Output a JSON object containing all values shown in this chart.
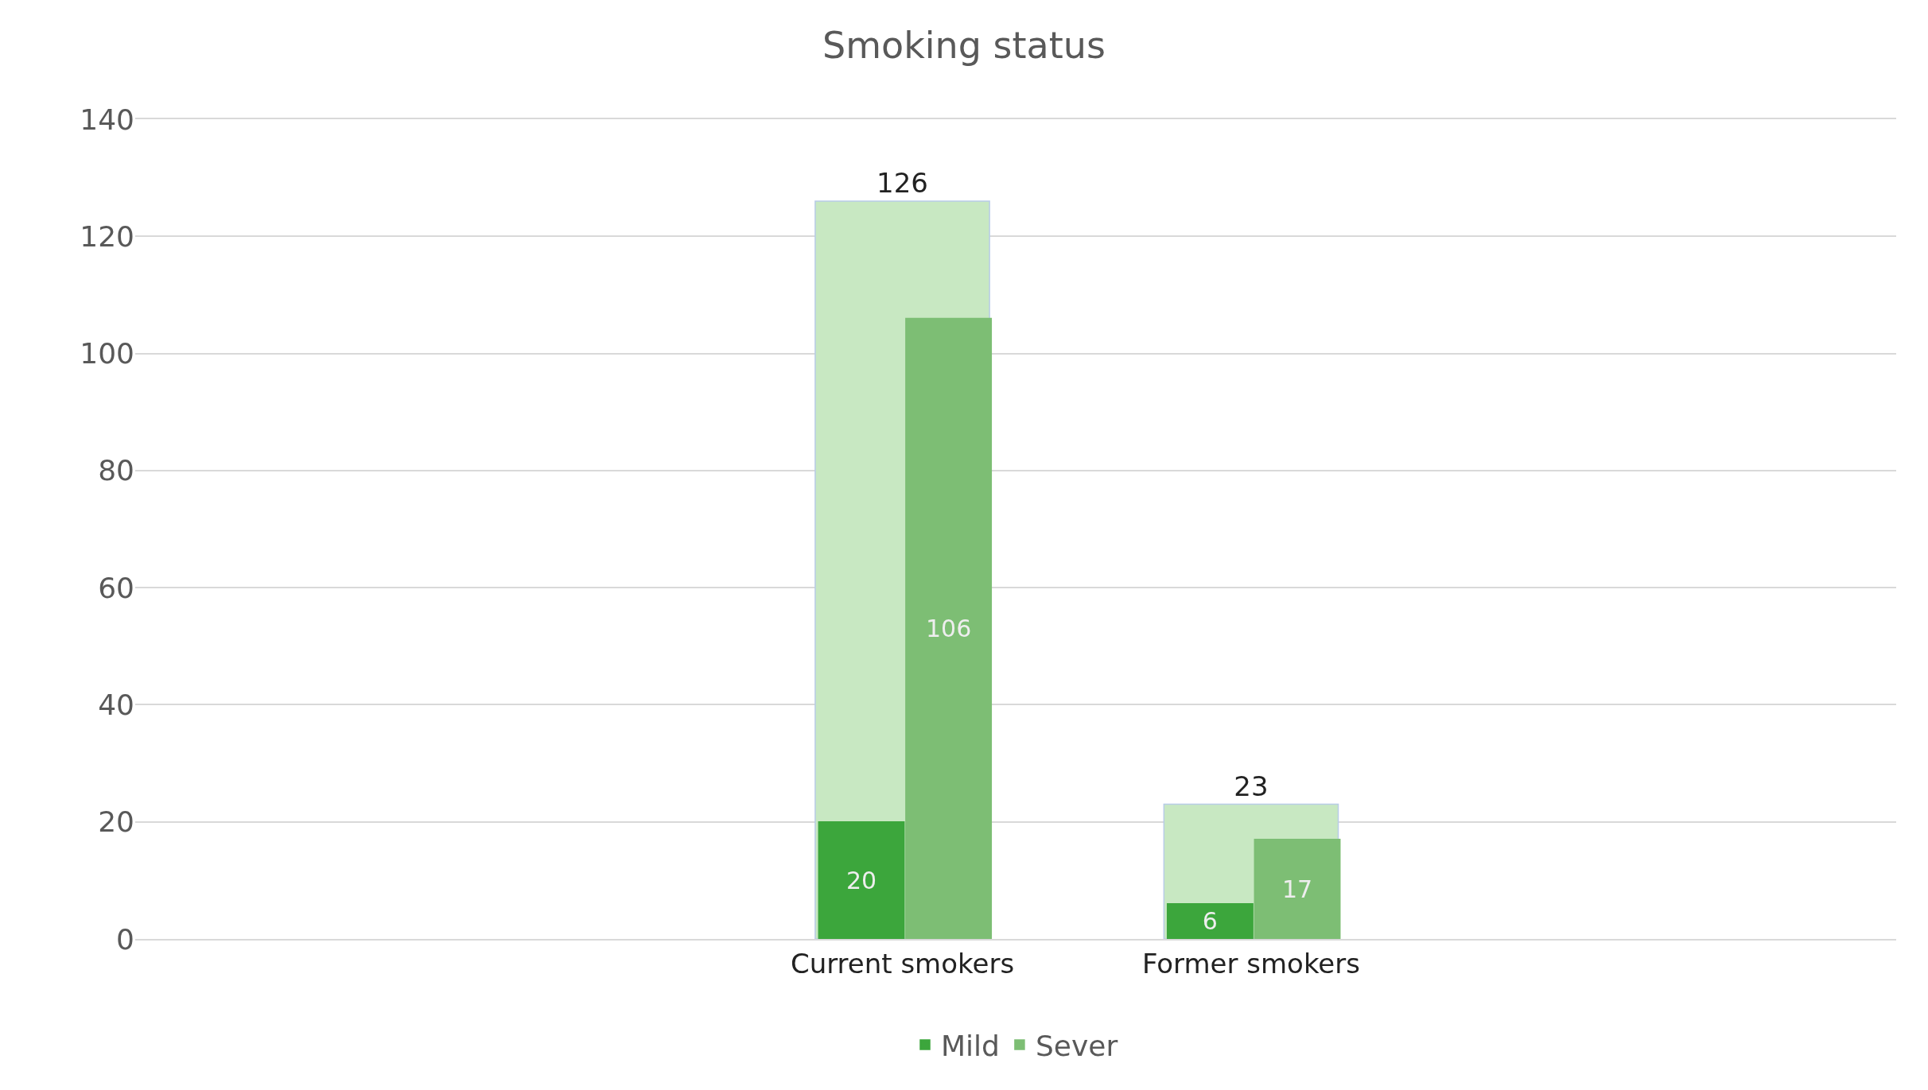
{
  "chart_data": {
    "type": "bar",
    "title": "Smoking status",
    "categories": [
      "Current smokers",
      "Former smokers"
    ],
    "series": [
      {
        "type": "bar",
        "color": "#c8e8c2",
        "values": [
          126,
          23
        ]
      },
      {
        "name": "Mild",
        "color": "#3ca63c",
        "values": [
          20,
          6
        ]
      },
      {
        "name": "Sever",
        "color": "#7dbe74",
        "values": [
          106,
          17
        ]
      }
    ],
    "ylim": [
      0,
      140
    ],
    "yticks": [
      0,
      20,
      40,
      60,
      80,
      100,
      120,
      140
    ],
    "grid": "y",
    "legend": "bottom",
    "data_labels": true
  }
}
